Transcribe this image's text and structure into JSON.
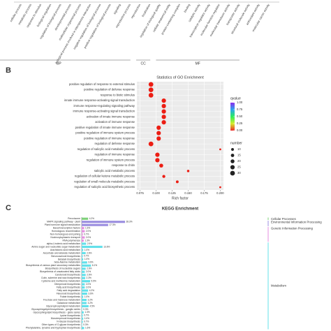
{
  "chart_data": [
    {
      "type": "category-axis",
      "groups": [
        {
          "name": "BP",
          "categories": [
            "cellular process",
            "metabolic process",
            "response to stimulus",
            "biological regulation",
            "regulation of biological process",
            "developmental process",
            "multicellular organismal process",
            "biological process involved in interspecies interaction",
            "negative regulation of biological process",
            "positive regulation of biological process",
            "signaling",
            "reproductive process",
            "reproduction",
            "localization",
            "regulation of biological quality"
          ]
        },
        {
          "name": "CC",
          "categories": [
            "cellular anatomical entity",
            "protein-containing complex"
          ]
        },
        {
          "name": "MF",
          "categories": [
            "binding",
            "catalytic activity",
            "transcription regulator activity",
            "molecular function regulator",
            "molecular transducer activity",
            "transporter activity",
            "structural molecule activity",
            "antioxidant activity",
            "molecular carrier activity"
          ]
        }
      ]
    },
    {
      "type": "dot",
      "label": "B",
      "title": "Statistics of GO Enrichment",
      "x_label": "Rich factor",
      "categories": [
        "positive regulation of response to external stimulus",
        "positive regulation of defense response",
        "response to biotic stimulus",
        "innate immune response-activating signal transduction",
        "immune response-regulating signaling pathway",
        "immune response-activating signal transduction",
        "activation of innate immune response",
        "activation of immune response",
        "positive regulation of innate immune response",
        "positive regulation of immune system process",
        "positive regulation of immune response",
        "regulation of defense response",
        "regulation of salicylic acid metabolic process",
        "regulation of immune response",
        "regulation of immune system process",
        "response to chitin",
        "salicylic acid metabolic process",
        "regulation of cellular ketone metabolic process",
        "regulation of small molecule metabolic process",
        "regulation of salicylic acid biosynthetic process"
      ],
      "x": [
        0.092,
        0.092,
        0.092,
        0.112,
        0.112,
        0.112,
        0.112,
        0.112,
        0.104,
        0.104,
        0.104,
        0.092,
        0.2,
        0.102,
        0.102,
        0.108,
        0.15,
        0.112,
        0.133,
        0.2
      ],
      "number": [
        30,
        30,
        30,
        25,
        25,
        25,
        25,
        25,
        25,
        25,
        25,
        30,
        5,
        25,
        25,
        20,
        8,
        12,
        10,
        5
      ],
      "qvalue": [
        0.01,
        0.01,
        0.01,
        0.01,
        0.01,
        0.01,
        0.01,
        0.01,
        0.01,
        0.01,
        0.01,
        0.01,
        0.01,
        0.01,
        0.01,
        0.01,
        0.01,
        0.01,
        0.01,
        0.01
      ],
      "xlim": [
        0.07,
        0.205
      ],
      "xticks": [
        0.075,
        {
          "value": 0.1,
          "label": "0.100"
        },
        0.125,
        {
          "value": 0.15,
          "label": "0.150"
        },
        0.175,
        {
          "value": 0.2,
          "label": "0.200"
        }
      ],
      "grid": true,
      "qvalue_title": "qvalue",
      "qvalue_lim": [
        0,
        1
      ],
      "qvalue_ticks": [
        {
          "value": 1,
          "label": "1.00"
        },
        0.75,
        {
          "value": 0.5,
          "label": "0.50"
        },
        0.25,
        {
          "value": 0,
          "label": "0.00"
        }
      ],
      "size_title": "number",
      "size_ticks": [
        10,
        15,
        20,
        25,
        30
      ]
    },
    {
      "type": "hbar",
      "label": "C",
      "title": "KEGG Enrichment",
      "categories": [
        "Peroxisome",
        "MAPK signaling pathway - plant",
        "Plant hormone signal transduction",
        "Basal transcription factors",
        "Homologous recombination",
        "Non-homologous end-joining",
        "Nucleocytoplasmic transport",
        "RNA polymerase",
        "alpha-Linolenic acid metabolism",
        "Amino sugar and nucleotide sugar metabolism",
        "Arachidonic acid metabolism",
        "Ascorbate and aldarate metabolism",
        "Benzoxazinoid biosynthesis",
        "Betalain biosynthesis",
        "beta-Alanine metabolism",
        "Biosynthesis of various plant secondary metabolites",
        "Biosynthesis of nucleotide sugars",
        "Biosynthesis of unsaturated fatty acids",
        "Carotenoid biosynthesis",
        "Cutin, suberine and wax biosynthesis",
        "Cysteine and methionine metabolism",
        "Diterpenoid biosynthesis",
        "Fatty acid biosynthesis",
        "Fatty acid degradation",
        "Flavonoid biosynthesis",
        "Folate biosynthesis",
        "Fructose and mannose metabolism",
        "Galactose metabolism",
        "Glycerophospholipid metabolism",
        "Glycosphingolipid biosynthesis - ganglio series",
        "Glycosphingolipid biosynthesis - globo series",
        "Lysine biosynthesis",
        "Monoterpenoid biosynthesis",
        "N-Glycan biosynthesis",
        "Other types of O-glycan biosynthesis",
        "Phenylalanine, tyrosine and tryptophan biosynthesis"
      ],
      "series": [
        {
          "name": "Cellular Processes",
          "color": "#7ed07a",
          "values": [
            4.2,
            null,
            null,
            null,
            null,
            null,
            null,
            null,
            null,
            null,
            null,
            null,
            null,
            null,
            null,
            null,
            null,
            null,
            null,
            null,
            null,
            null,
            null,
            null,
            null,
            null,
            null,
            null,
            null,
            null,
            null,
            null,
            null,
            null,
            null,
            null
          ],
          "value_labels": [
            "4.2%",
            null,
            null,
            null,
            null,
            null,
            null,
            null,
            null,
            null,
            null,
            null,
            null,
            null,
            null,
            null,
            null,
            null,
            null,
            null,
            null,
            null,
            null,
            null,
            null,
            null,
            null,
            null,
            null,
            null,
            null,
            null,
            null,
            null,
            null,
            null
          ]
        },
        {
          "name": "Environmental Information Processing",
          "color": "#9b8ee0",
          "values": [
            null,
            28.3,
            17.3,
            null,
            null,
            null,
            null,
            null,
            null,
            null,
            null,
            null,
            null,
            null,
            null,
            null,
            null,
            null,
            null,
            null,
            null,
            null,
            null,
            null,
            null,
            null,
            null,
            null,
            null,
            null,
            null,
            null,
            null,
            null,
            null,
            null
          ],
          "value_labels": [
            null,
            "28.3%",
            "17.3%",
            null,
            null,
            null,
            null,
            null,
            null,
            null,
            null,
            null,
            null,
            null,
            null,
            null,
            null,
            null,
            null,
            null,
            null,
            null,
            null,
            null,
            null,
            null,
            null,
            null,
            null,
            null,
            null,
            null,
            null,
            null,
            null,
            null
          ]
        },
        {
          "name": "Genetic Information Processing",
          "color": "#e58ee0",
          "values": [
            null,
            null,
            null,
            1.6,
            2.0,
            0.7,
            2.0,
            1.3,
            null,
            null,
            null,
            null,
            null,
            null,
            null,
            null,
            null,
            null,
            null,
            null,
            null,
            null,
            null,
            null,
            null,
            null,
            null,
            null,
            null,
            null,
            null,
            null,
            null,
            null,
            null,
            null
          ],
          "value_labels": [
            null,
            null,
            null,
            "1.6%",
            "2.0%",
            "0.7%",
            "2.0%",
            "1.3%",
            null,
            null,
            null,
            null,
            null,
            null,
            null,
            null,
            null,
            null,
            null,
            null,
            null,
            null,
            null,
            null,
            null,
            null,
            null,
            null,
            null,
            null,
            null,
            null,
            null,
            null,
            null,
            null
          ]
        },
        {
          "name": "Metabolism",
          "color": "#63e0ea",
          "values": [
            null,
            null,
            null,
            null,
            null,
            null,
            null,
            null,
            2.9,
            13.6,
            1.0,
            2.6,
            0.7,
            1.0,
            3.6,
            6.1,
            2.6,
            2.0,
            2.6,
            2.3,
            5.5,
            2.0,
            2.0,
            4.2,
            3.6,
            1.0,
            3.2,
            3.2,
            4.5,
            0.3,
            1.3,
            0.7,
            1.0,
            0.7,
            0.3,
            1.6
          ],
          "value_labels": [
            null,
            null,
            null,
            null,
            null,
            null,
            null,
            null,
            "2.9%",
            "13.6%",
            "1.0%",
            "2.6%",
            "0.7%",
            "1.0%",
            "3.6%",
            "6.1%",
            "2.6%",
            "2.0%",
            "2.6%",
            "2.3%",
            "5.5%",
            "2.0%",
            "2.0%",
            "4.2%",
            "3.6%",
            "1.0%",
            "3.2%",
            "3.2%",
            "4.5%",
            "0.3%",
            "1.3%",
            "0.7%",
            "1.0%",
            "0.7%",
            "0.3%",
            "1.6%"
          ]
        }
      ]
    }
  ]
}
